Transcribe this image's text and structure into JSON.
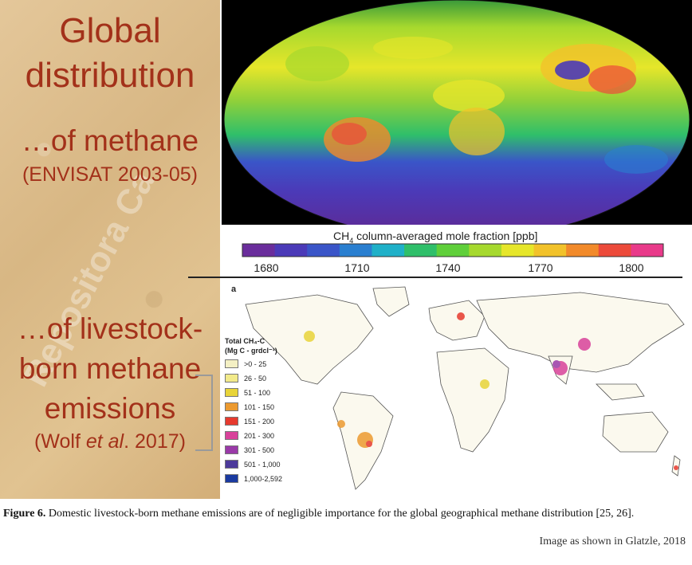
{
  "left": {
    "line1": "Global",
    "line2": "distribution",
    "line3": "…of methane",
    "line4": "(ENVISAT 2003-05)",
    "line5": "…of livestock-",
    "line6": "born methane",
    "line7": "emissions",
    "line8_pre": "(Wolf ",
    "line8_italic": "et al",
    "line8_post": ". 2017)",
    "watermark": "Repositora Ca"
  },
  "colorbar": {
    "title_pre": "CH",
    "title_sub": "4",
    "title_post": " column-averaged mole fraction [ppb]",
    "ticks": [
      "1680",
      "1710",
      "1740",
      "1770",
      "1800"
    ],
    "colors": [
      "#6a2d9c",
      "#4b3ab8",
      "#3a55c8",
      "#2a7fd0",
      "#1fb0c8",
      "#2fbf6a",
      "#5fcf3a",
      "#a6d92e",
      "#e6e62a",
      "#f2c22a",
      "#f28a2a",
      "#ec4a3a",
      "#e93a8a"
    ]
  },
  "bottom_map": {
    "panel_letter": "a",
    "legend_title_1": "Total CH₄-C",
    "legend_title_2": "(Mg C - grdcl⁻¹)",
    "legend_items": [
      {
        "label": ">0 - 25",
        "color": "#f4f0c4"
      },
      {
        "label": "26 - 50",
        "color": "#f2ea8a"
      },
      {
        "label": "51 - 100",
        "color": "#e8d438"
      },
      {
        "label": "101 - 150",
        "color": "#ec9a30"
      },
      {
        "label": "151 - 200",
        "color": "#e63a2e"
      },
      {
        "label": "201 - 300",
        "color": "#d8429a"
      },
      {
        "label": "301 - 500",
        "color": "#9a3aa8"
      },
      {
        "label": "501 - 1,000",
        "color": "#4c3a9a"
      },
      {
        "label": "1,000-2,592",
        "color": "#1a3aa0"
      }
    ]
  },
  "caption": {
    "label": "Figure 6.",
    "text": " Domestic livestock-born methane emissions are of negligible importance for the global geographical methane distribution [25, 26].",
    "credit": "Image as shown in Glatzle, 2018"
  }
}
